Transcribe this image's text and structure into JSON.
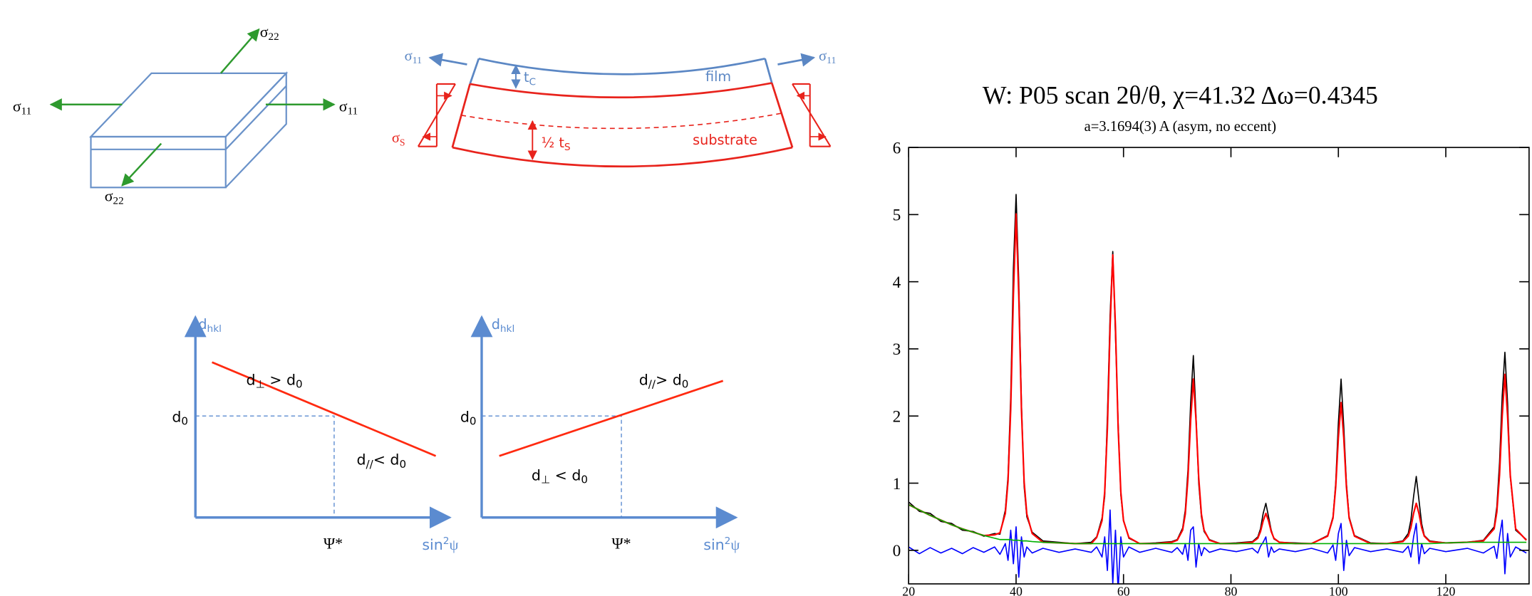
{
  "stress_box": {
    "labels": [
      {
        "symbol": "σ",
        "sub": "22"
      },
      {
        "symbol": "σ",
        "sub": "11"
      },
      {
        "symbol": "σ",
        "sub": "11"
      },
      {
        "symbol": "σ",
        "sub": "22"
      }
    ]
  },
  "film_bending": {
    "sigma_left": {
      "symbol": "σ",
      "sub": "11"
    },
    "sigma_right": {
      "symbol": "σ",
      "sub": "11"
    },
    "t_c": {
      "symbol": "t",
      "sub": "C"
    },
    "film": "film",
    "sigma_s": {
      "symbol": "σ",
      "sub": "S"
    },
    "half_ts": {
      "symbol": "½ t",
      "sub": "S"
    },
    "substrate": "substrate"
  },
  "plot_left": {
    "y_label": {
      "symbol": "d",
      "sub": "hkl"
    },
    "d0": {
      "symbol": "d",
      "sub": "0"
    },
    "upper_label": [
      "d",
      "⊥",
      " > d",
      "0"
    ],
    "lower_label": [
      "d",
      "//",
      "< d",
      "0"
    ],
    "psi_star": "Ψ*",
    "x_label": [
      "sin",
      "2",
      "ψ"
    ]
  },
  "plot_right": {
    "y_label": {
      "symbol": "d",
      "sub": "hkl"
    },
    "d0": {
      "symbol": "d",
      "sub": "0"
    },
    "upper_label": [
      "d",
      "//",
      "> d",
      "0"
    ],
    "lower_label": [
      "d",
      "⊥",
      " < d",
      "0"
    ],
    "psi_star": "Ψ*",
    "x_label": [
      "sin",
      "2",
      "ψ"
    ]
  },
  "chart_data": {
    "type": "line",
    "title": "W: P05 scan 2θ/θ, χ=41.32 Δω=0.4345",
    "subtitle": "a=3.1694(3) A (asym, no eccent)",
    "x": [
      20,
      22,
      24,
      26,
      28,
      30,
      32,
      34,
      36,
      37,
      38,
      38.5,
      39,
      39.5,
      40,
      40.5,
      41,
      41.5,
      42,
      43,
      45,
      48,
      51,
      54,
      55,
      56,
      56.5,
      57,
      57.5,
      58,
      58.5,
      59,
      59.5,
      60,
      61,
      63,
      66,
      69,
      70,
      71,
      71.5,
      72,
      72.5,
      73,
      73.5,
      74,
      74.5,
      75,
      76,
      78,
      81,
      84,
      85,
      85.5,
      86,
      86.5,
      87,
      87.5,
      88,
      89,
      92,
      95,
      98,
      99,
      99.5,
      100,
      100.5,
      101,
      101.5,
      102,
      103,
      106,
      109,
      112,
      113,
      113.5,
      114,
      114.5,
      115,
      115.5,
      116,
      117,
      120,
      124,
      127,
      129,
      129.5,
      130,
      130.5,
      131,
      131.5,
      132,
      133,
      135
    ],
    "series": [
      {
        "color": "#000000",
        "values": [
          0.72,
          0.58,
          0.55,
          0.43,
          0.4,
          0.3,
          0.28,
          0.21,
          0.25,
          0.24,
          0.6,
          1.1,
          2.3,
          4.2,
          5.3,
          4.0,
          2.2,
          0.95,
          0.5,
          0.27,
          0.14,
          0.12,
          0.1,
          0.12,
          0.2,
          0.48,
          0.8,
          2.0,
          3.5,
          4.45,
          3.2,
          1.9,
          0.82,
          0.45,
          0.18,
          0.1,
          0.11,
          0.13,
          0.16,
          0.33,
          0.6,
          1.2,
          2.2,
          2.9,
          2.0,
          1.0,
          0.5,
          0.28,
          0.16,
          0.1,
          0.11,
          0.13,
          0.2,
          0.32,
          0.55,
          0.7,
          0.5,
          0.3,
          0.17,
          0.12,
          0.11,
          0.1,
          0.22,
          0.5,
          1.0,
          1.9,
          2.55,
          1.85,
          1.0,
          0.5,
          0.22,
          0.11,
          0.1,
          0.14,
          0.25,
          0.45,
          0.8,
          1.1,
          0.75,
          0.4,
          0.22,
          0.14,
          0.11,
          0.12,
          0.15,
          0.35,
          0.65,
          1.3,
          2.3,
          2.95,
          2.2,
          1.1,
          0.3,
          0.16
        ]
      },
      {
        "color": "#0000ff",
        "values": [
          0.05,
          -0.05,
          0.04,
          -0.04,
          0.03,
          -0.05,
          0.04,
          -0.03,
          0.05,
          -0.06,
          0.1,
          -0.15,
          0.3,
          -0.2,
          0.35,
          -0.4,
          0.2,
          -0.1,
          0.05,
          -0.04,
          0.03,
          -0.03,
          0.02,
          -0.03,
          0.05,
          -0.1,
          0.2,
          -0.3,
          0.6,
          -0.5,
          0.3,
          -0.6,
          0.2,
          -0.1,
          0.05,
          -0.03,
          0.03,
          -0.03,
          0.04,
          -0.06,
          0.1,
          -0.15,
          0.3,
          0.35,
          -0.25,
          0.1,
          -0.08,
          0.04,
          -0.03,
          0.02,
          -0.02,
          0.03,
          -0.04,
          0.06,
          0.12,
          0.2,
          -0.1,
          0.05,
          -0.03,
          0.02,
          -0.02,
          0.03,
          -0.04,
          0.08,
          -0.15,
          0.25,
          0.4,
          -0.3,
          0.15,
          -0.08,
          0.04,
          -0.02,
          0.02,
          -0.03,
          0.06,
          -0.1,
          0.2,
          0.4,
          -0.2,
          0.1,
          -0.05,
          0.03,
          -0.02,
          0.03,
          -0.04,
          0.06,
          -0.12,
          0.2,
          0.45,
          -0.35,
          0.25,
          -0.1,
          0.05,
          -0.04
        ]
      },
      {
        "color": "#ff0000",
        "values": [
          0.68,
          0.6,
          0.52,
          0.45,
          0.38,
          0.32,
          0.27,
          0.22,
          0.23,
          0.26,
          0.55,
          1.03,
          2.1,
          3.8,
          5.01,
          3.8,
          2.09,
          1.02,
          0.54,
          0.25,
          0.12,
          0.11,
          0.1,
          0.1,
          0.19,
          0.44,
          0.87,
          1.82,
          3.33,
          4.4,
          3.33,
          1.82,
          0.87,
          0.44,
          0.19,
          0.1,
          0.1,
          0.12,
          0.15,
          0.3,
          0.54,
          1.08,
          1.94,
          2.55,
          1.94,
          1.08,
          0.54,
          0.3,
          0.15,
          0.1,
          0.1,
          0.12,
          0.18,
          0.28,
          0.44,
          0.55,
          0.44,
          0.28,
          0.18,
          0.12,
          0.1,
          0.1,
          0.21,
          0.48,
          0.94,
          1.68,
          2.2,
          1.68,
          0.94,
          0.48,
          0.21,
          0.1,
          0.1,
          0.13,
          0.21,
          0.34,
          0.55,
          0.7,
          0.55,
          0.34,
          0.21,
          0.13,
          0.11,
          0.12,
          0.14,
          0.32,
          0.57,
          1.12,
          2.0,
          2.62,
          2.0,
          1.12,
          0.32,
          0.15
        ]
      },
      {
        "color": "#00b000",
        "values": [
          0.68,
          0.6,
          0.52,
          0.45,
          0.38,
          0.32,
          0.27,
          0.22,
          0.18,
          0.16,
          0.16,
          0.16,
          0.16,
          0.15,
          0.15,
          0.15,
          0.14,
          0.14,
          0.14,
          0.13,
          0.12,
          0.11,
          0.1,
          0.1,
          0.1,
          0.1,
          0.1,
          0.1,
          0.1,
          0.1,
          0.1,
          0.1,
          0.1,
          0.1,
          0.1,
          0.1,
          0.1,
          0.1,
          0.1,
          0.1,
          0.1,
          0.1,
          0.1,
          0.1,
          0.1,
          0.1,
          0.1,
          0.1,
          0.1,
          0.1,
          0.1,
          0.1,
          0.1,
          0.1,
          0.1,
          0.1,
          0.1,
          0.1,
          0.1,
          0.1,
          0.1,
          0.1,
          0.1,
          0.1,
          0.1,
          0.1,
          0.1,
          0.1,
          0.1,
          0.1,
          0.1,
          0.1,
          0.1,
          0.1,
          0.1,
          0.1,
          0.1,
          0.1,
          0.1,
          0.1,
          0.1,
          0.1,
          0.11,
          0.12,
          0.12,
          0.12,
          0.12,
          0.12,
          0.12,
          0.12,
          0.12,
          0.12,
          0.12,
          0.12
        ]
      }
    ],
    "xlim": [
      20,
      135.5
    ],
    "ylim": [
      -0.5,
      6
    ],
    "xticks": [
      20,
      40,
      60,
      80,
      100,
      120
    ],
    "yticks": [
      0,
      1,
      2,
      3,
      4,
      5,
      6
    ]
  }
}
